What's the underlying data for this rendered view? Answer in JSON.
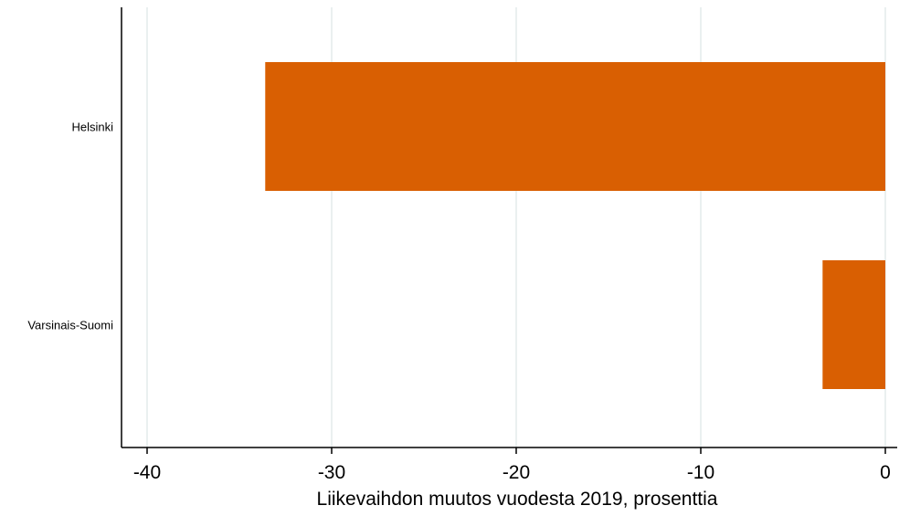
{
  "chart_data": {
    "type": "bar",
    "orientation": "horizontal",
    "categories": [
      "Helsinki",
      "Varsinais-Suomi"
    ],
    "values": [
      -33.6,
      -3.4
    ],
    "xlabel": "Liikevaihdon muutos vuodesta 2019, prosenttia",
    "ylabel": "",
    "title": "",
    "xlim": [
      -40,
      0
    ],
    "xticks": [
      -40,
      -30,
      -20,
      -10,
      0
    ],
    "xtick_labels": [
      "-40",
      "-30",
      "-20",
      "-10",
      "0"
    ],
    "grid": true,
    "legend": "none",
    "bar_color": "#d95f02",
    "grid_color": "#e3ebec"
  }
}
